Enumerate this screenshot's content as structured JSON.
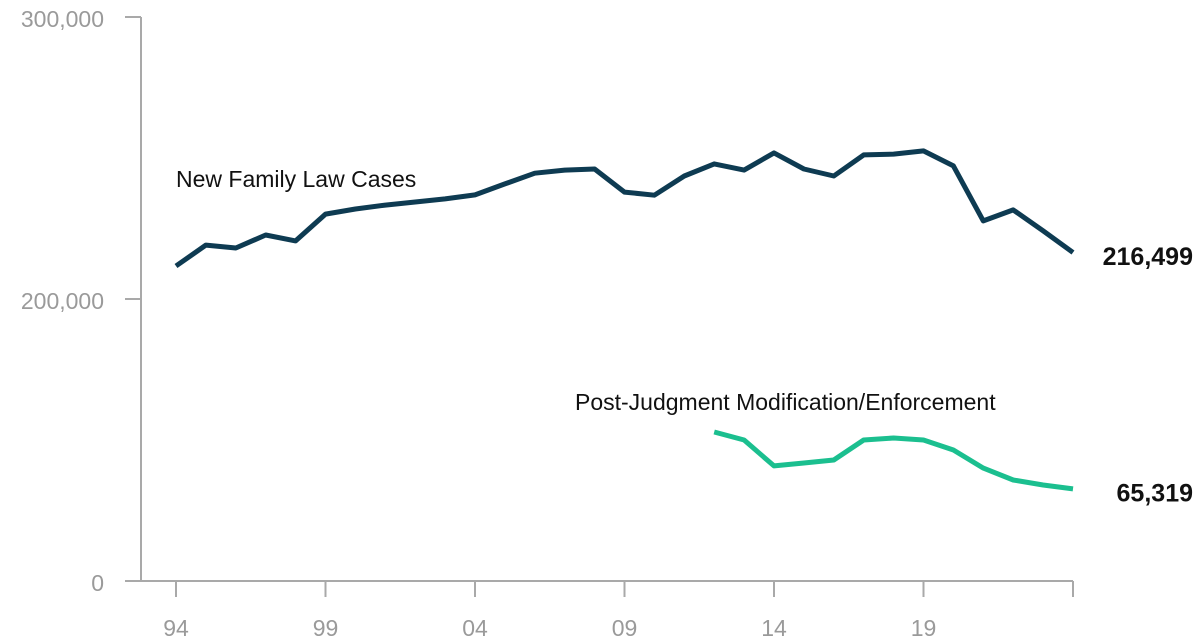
{
  "chart_data": {
    "type": "line",
    "categories": [
      "94",
      null,
      null,
      null,
      null,
      "99",
      null,
      null,
      null,
      null,
      "04",
      null,
      null,
      null,
      null,
      "09",
      null,
      null,
      null,
      null,
      "14",
      null,
      null,
      null,
      null,
      "19",
      null,
      null,
      null,
      null,
      null
    ],
    "series": [
      {
        "name": "New Family Law Cases",
        "color": "#0e3b52",
        "values": [
          211700,
          219100,
          218100,
          222700,
          220600,
          230100,
          231900,
          233300,
          234400,
          235500,
          236900,
          240800,
          244600,
          245700,
          246100,
          237900,
          236800,
          243600,
          247900,
          245700,
          251800,
          246100,
          243600,
          251100,
          251400,
          252500,
          247200,
          227700,
          231600,
          224200,
          216499
        ],
        "value_labels": [
          null,
          null,
          null,
          null,
          null,
          null,
          null,
          null,
          null,
          null,
          null,
          null,
          null,
          null,
          null,
          null,
          null,
          null,
          null,
          null,
          null,
          null,
          null,
          null,
          null,
          null,
          null,
          null,
          null,
          null,
          "216,499"
        ]
      },
      {
        "name": "Post-Judgment Modification/Enforcement",
        "color": "#1bbf8f",
        "values": [
          null,
          null,
          null,
          null,
          null,
          null,
          null,
          null,
          null,
          null,
          null,
          null,
          null,
          null,
          null,
          null,
          null,
          null,
          105700,
          100000,
          81600,
          83700,
          85800,
          100000,
          101400,
          100000,
          92900,
          80100,
          71600,
          68100,
          65319
        ],
        "value_labels": [
          null,
          null,
          null,
          null,
          null,
          null,
          null,
          null,
          null,
          null,
          null,
          null,
          null,
          null,
          null,
          null,
          null,
          null,
          null,
          null,
          null,
          null,
          null,
          null,
          null,
          null,
          null,
          null,
          null,
          null,
          "65,319"
        ]
      }
    ],
    "ylim": [
      0,
      300000
    ],
    "yticks": [
      0,
      {
        "value": 200000,
        "label": "200,000"
      },
      {
        "value": 300000,
        "label": "300,000"
      }
    ]
  }
}
